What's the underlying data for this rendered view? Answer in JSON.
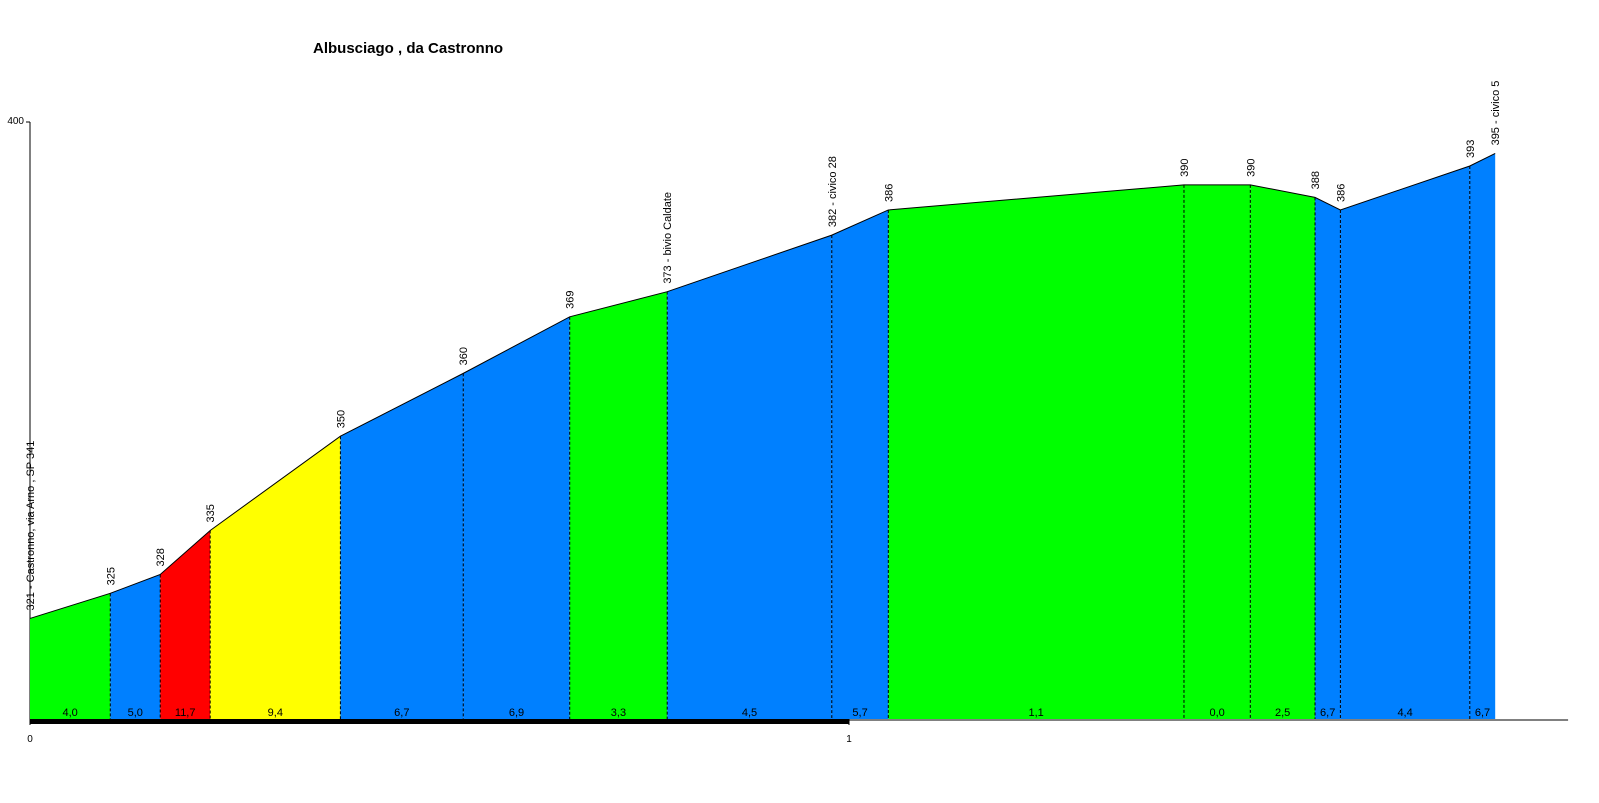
{
  "chart_data": {
    "type": "profile",
    "title": "Albusciago , da Castronno",
    "x": [
      0,
      0.098,
      0.159,
      0.22,
      0.379,
      0.529,
      0.659,
      0.778,
      0.979,
      1.048,
      1.409,
      1.49,
      1.569,
      1.6,
      1.758,
      1.789
    ],
    "values": [
      321,
      325,
      328,
      335,
      350,
      360,
      369,
      373,
      382,
      386,
      390,
      390,
      388,
      386,
      393,
      395
    ],
    "value_labels": [
      "321 - Castronno, via Arno , SP 341",
      "325",
      "328",
      "335",
      "350",
      "360",
      "369",
      "373 - bivio Caldate",
      "382 - civico 28",
      "386",
      "390",
      "390",
      "388",
      "386",
      "393",
      "395 - civico 5"
    ],
    "gradients": [
      4.0,
      5.0,
      11.7,
      9.4,
      6.7,
      6.9,
      3.3,
      4.5,
      5.7,
      1.1,
      0.0,
      2.5,
      6.7,
      4.4,
      6.7
    ],
    "gradient_labels": [
      "4,0",
      "5,0",
      "11,7",
      "9,4",
      "6,7",
      "6,9",
      "3,3",
      "4,5",
      "5,7",
      "1,1",
      "0,0",
      "2,5",
      "6,7",
      "4,4",
      "6,7"
    ],
    "segment_colors": [
      "#00ff00",
      "#0080ff",
      "#ff0000",
      "#ffff00",
      "#0080ff",
      "#0080ff",
      "#00ff00",
      "#0080ff",
      "#0080ff",
      "#00ff00",
      "#00ff00",
      "#00ff00",
      "#0080ff",
      "#0080ff",
      "#0080ff"
    ],
    "xlim": [
      0,
      1.878
    ],
    "xticks": [
      0,
      1
    ],
    "ylim": [
      305,
      400
    ],
    "yticks": [
      400
    ]
  }
}
